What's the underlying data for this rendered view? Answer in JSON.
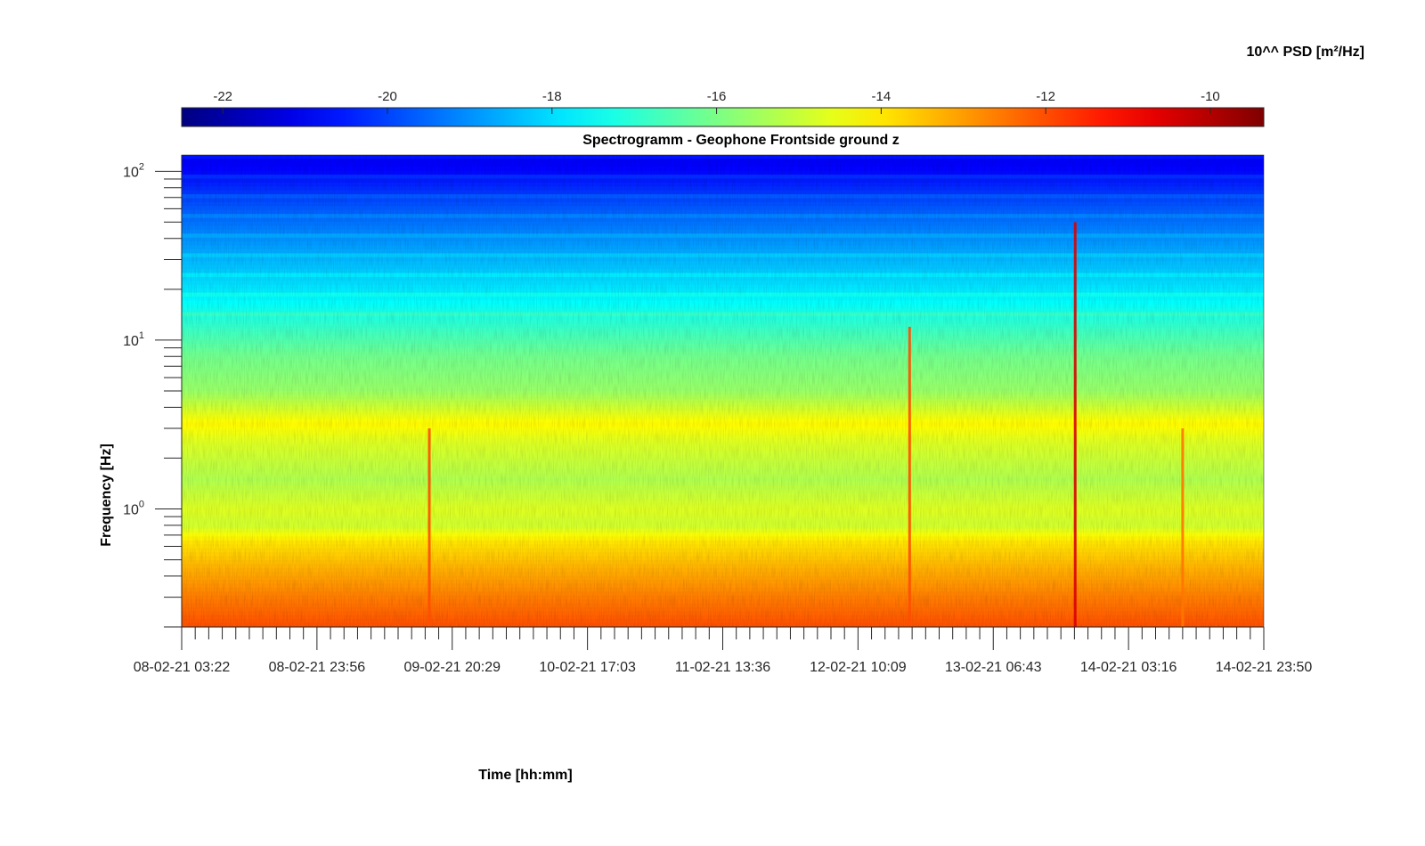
{
  "chart_data": {
    "type": "heatmap",
    "title": "Spectrogramm - Geophone Frontside ground z",
    "xlabel": "Time [hh:mm]",
    "ylabel": "Frequency [Hz]",
    "colorbar": {
      "label": "10^^ PSD [m²/Hz]",
      "range": [
        -22.5,
        -9.35
      ],
      "ticks": [
        -22,
        -20,
        -18,
        -16,
        -14,
        -12,
        -10
      ],
      "tick_labels": [
        "-22",
        "-20",
        "-18",
        "-16",
        "-14",
        "-12",
        "-10"
      ],
      "colormap": "jet",
      "placement": "top"
    },
    "x": {
      "range": [
        "08-02-21 03:22",
        "14-02-21 23:50"
      ],
      "tick_labels": [
        "08-02-21 03:22",
        "08-02-21 23:56",
        "09-02-21 20:29",
        "10-02-21 17:03",
        "11-02-21 13:36",
        "12-02-21 10:09",
        "13-02-21 06:43",
        "14-02-21 03:16",
        "14-02-21 23:50"
      ]
    },
    "y": {
      "scale": "log",
      "range": [
        0.2,
        125
      ],
      "ticks": [
        1,
        10,
        100
      ],
      "tick_labels": [
        {
          "base": "10",
          "exp": "0"
        },
        {
          "base": "10",
          "exp": "1"
        },
        {
          "base": "10",
          "exp": "2"
        }
      ]
    },
    "psd_profile": [
      {
        "freq": 0.2,
        "psd": -12.0
      },
      {
        "freq": 0.3,
        "psd": -12.6
      },
      {
        "freq": 0.45,
        "psd": -13.3
      },
      {
        "freq": 0.65,
        "psd": -14.0
      },
      {
        "freq": 0.8,
        "psd": -14.9
      },
      {
        "freq": 1.0,
        "psd": -14.7
      },
      {
        "freq": 1.5,
        "psd": -15.3
      },
      {
        "freq": 2.5,
        "psd": -14.7
      },
      {
        "freq": 3.2,
        "psd": -14.2
      },
      {
        "freq": 5,
        "psd": -15.6
      },
      {
        "freq": 8,
        "psd": -16.1
      },
      {
        "freq": 12,
        "psd": -16.9
      },
      {
        "freq": 18,
        "psd": -17.7
      },
      {
        "freq": 30,
        "psd": -18.5
      },
      {
        "freq": 60,
        "psd": -19.7
      },
      {
        "freq": 100,
        "psd": -20.8
      },
      {
        "freq": 125,
        "psd": -21.0
      }
    ],
    "events": [
      {
        "time": "09-02-21 17:00",
        "fmax": 3,
        "psd": -12.0
      },
      {
        "time": "12-02-21 18:00",
        "fmax": 12,
        "psd": -12.0
      },
      {
        "time": "13-02-21 19:10",
        "fmax": 50,
        "psd": -10.5
      },
      {
        "time": "14-02-21 11:30",
        "fmax": 3,
        "psd": -12.5
      }
    ]
  }
}
